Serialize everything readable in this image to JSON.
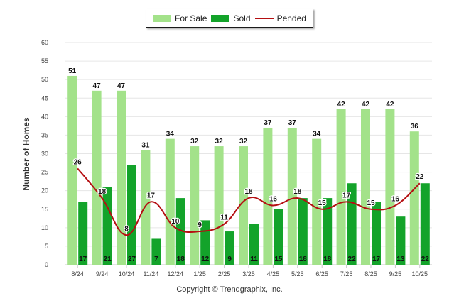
{
  "chart_data": {
    "type": "bar",
    "title": "",
    "xlabel": "",
    "ylabel": "Number of Homes",
    "ylim": [
      0,
      60
    ],
    "yticks": [
      0,
      5,
      10,
      15,
      20,
      25,
      30,
      35,
      40,
      45,
      50,
      55,
      60
    ],
    "grid": true,
    "legend_position": "top-center",
    "categories": [
      "8/24",
      "9/24",
      "10/24",
      "11/24",
      "12/24",
      "1/25",
      "2/25",
      "3/25",
      "4/25",
      "5/25",
      "6/25",
      "7/25",
      "8/25",
      "9/25",
      "10/25"
    ],
    "series": [
      {
        "name": "For Sale",
        "type": "bar",
        "color": "#a3e28a",
        "values": [
          51,
          47,
          47,
          31,
          34,
          32,
          32,
          32,
          37,
          37,
          34,
          42,
          42,
          42,
          36
        ]
      },
      {
        "name": "Sold",
        "type": "bar",
        "color": "#13a32a",
        "values": [
          17,
          21,
          27,
          7,
          18,
          12,
          9,
          11,
          15,
          18,
          18,
          22,
          17,
          13,
          22
        ]
      },
      {
        "name": "Pended",
        "type": "line",
        "color": "#b50f12",
        "values": [
          26,
          18,
          8,
          17,
          10,
          9,
          11,
          18,
          16,
          18,
          15,
          17,
          15,
          16,
          22
        ]
      }
    ]
  },
  "legend": {
    "for_sale": "For Sale",
    "sold": "Sold",
    "pended": "Pended"
  },
  "footer": {
    "copyright": "Copyright © Trendgraphix, Inc."
  },
  "colors": {
    "for_sale": "#a3e28a",
    "sold": "#13a32a",
    "pended": "#b50f12",
    "grid": "#e6e6e6"
  }
}
